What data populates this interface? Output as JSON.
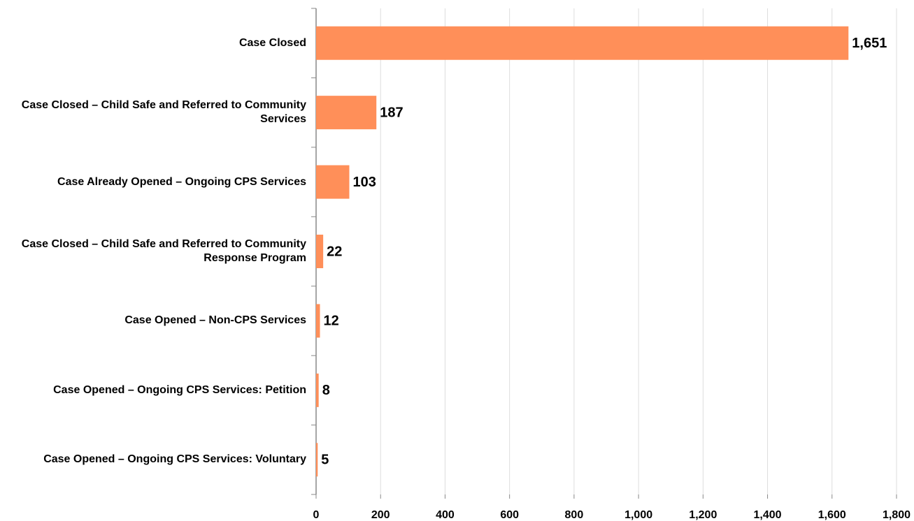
{
  "chart_data": {
    "type": "barh",
    "categories": [
      "Case Closed",
      "Case Closed – Child Safe and Referred to Community Services",
      "Case Already Opened – Ongoing CPS Services",
      "Case Closed – Child Safe and Referred to Community Response Program",
      "Case Opened – Non-CPS Services",
      "Case Opened – Ongoing CPS Services: Petition",
      "Case Opened – Ongoing CPS Services: Voluntary"
    ],
    "values": [
      1651,
      187,
      103,
      22,
      12,
      8,
      5
    ],
    "value_labels": [
      "1,651",
      "187",
      "103",
      "22",
      "12",
      "8",
      "5"
    ],
    "color": "#ff8f59",
    "xlim": [
      0,
      1800
    ],
    "xticks": [
      0,
      200,
      400,
      600,
      800,
      {
        "value": 1000,
        "label": "1,000"
      },
      {
        "value": 1200,
        "label": "1,200"
      },
      {
        "value": 1400,
        "label": "1,400"
      },
      {
        "value": 1600,
        "label": "1,600"
      },
      {
        "value": 1800,
        "label": "1,800"
      }
    ],
    "grid": true
  }
}
